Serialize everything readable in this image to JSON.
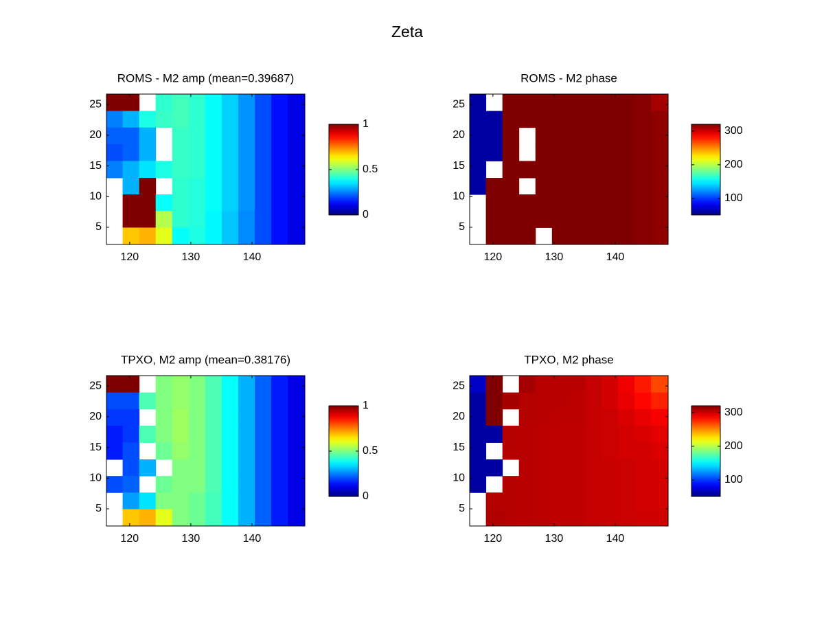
{
  "title": "Zeta",
  "chart_data": [
    {
      "type": "heatmap",
      "title": "ROMS - M2 amp (mean=0.39687)",
      "colormap": "jet",
      "x": [
        117.5,
        120.2,
        122.9,
        125.6,
        128.3,
        131,
        133.7,
        136.4,
        139.1,
        141.8,
        144.5,
        147.2
      ],
      "y": [
        25.3,
        22.6,
        19.9,
        17.2,
        14.4,
        11.7,
        9.0,
        6.3,
        3.6
      ],
      "z": [
        [
          1,
          1,
          null,
          0.42,
          0.44,
          0.42,
          0.38,
          0.33,
          0.27,
          0.2,
          0.14,
          0.1
        ],
        [
          0.25,
          0.3,
          0.4,
          0.43,
          0.44,
          0.42,
          0.38,
          0.33,
          0.27,
          0.2,
          0.14,
          0.1
        ],
        [
          0.22,
          0.22,
          0.3,
          null,
          0.43,
          0.42,
          0.38,
          0.33,
          0.27,
          0.2,
          0.14,
          0.1
        ],
        [
          0.2,
          0.22,
          0.3,
          null,
          0.43,
          0.42,
          0.38,
          0.33,
          0.27,
          0.2,
          0.14,
          0.1
        ],
        [
          0.25,
          0.3,
          0.35,
          0.4,
          0.43,
          0.42,
          0.38,
          0.33,
          0.27,
          0.2,
          0.14,
          0.1
        ],
        [
          null,
          0.3,
          1,
          null,
          0.42,
          0.41,
          0.38,
          0.33,
          0.27,
          0.2,
          0.14,
          0.1
        ],
        [
          null,
          1,
          1,
          0.38,
          0.42,
          0.41,
          0.38,
          0.33,
          0.27,
          0.2,
          0.14,
          0.1
        ],
        [
          null,
          1,
          1,
          0.55,
          0.42,
          0.41,
          0.37,
          0.32,
          0.26,
          0.2,
          0.14,
          0.1
        ],
        [
          null,
          0.68,
          0.7,
          0.6,
          0.38,
          0.4,
          0.37,
          0.32,
          0.26,
          0.2,
          0.14,
          0.1
        ]
      ],
      "xlim": [
        116.2,
        148.65
      ],
      "ylim": [
        2.2,
        26.7
      ],
      "xticks": [
        120,
        130,
        140
      ],
      "yticks": [
        5,
        10,
        15,
        20,
        25
      ],
      "clim": [
        0,
        1
      ],
      "cticks": [
        0,
        0.5,
        1
      ]
    },
    {
      "type": "heatmap",
      "title": "ROMS - M2 phase",
      "colormap": "jet",
      "x": [
        117.5,
        120.2,
        122.9,
        125.6,
        128.3,
        131,
        133.7,
        136.4,
        139.1,
        141.8,
        144.5,
        147.2
      ],
      "y": [
        25.3,
        22.6,
        19.9,
        17.2,
        14.4,
        11.7,
        9.0,
        6.3,
        3.6
      ],
      "z": [
        [
          60,
          null,
          325,
          322,
          322,
          322,
          322,
          322,
          322,
          320,
          318,
          310
        ],
        [
          60,
          60,
          325,
          322,
          322,
          322,
          322,
          322,
          322,
          320,
          318,
          316
        ],
        [
          60,
          60,
          325,
          null,
          322,
          322,
          322,
          322,
          322,
          320,
          318,
          316
        ],
        [
          60,
          60,
          325,
          null,
          322,
          322,
          322,
          322,
          322,
          320,
          318,
          316
        ],
        [
          60,
          null,
          325,
          322,
          322,
          322,
          322,
          322,
          322,
          320,
          318,
          316
        ],
        [
          60,
          325,
          325,
          null,
          322,
          322,
          322,
          322,
          322,
          320,
          318,
          316
        ],
        [
          null,
          325,
          325,
          322,
          322,
          322,
          322,
          322,
          322,
          320,
          318,
          316
        ],
        [
          null,
          325,
          325,
          322,
          322,
          322,
          322,
          322,
          322,
          320,
          318,
          316
        ],
        [
          null,
          325,
          325,
          322,
          null,
          322,
          322,
          322,
          322,
          320,
          318,
          316
        ]
      ],
      "xlim": [
        116.2,
        148.65
      ],
      "ylim": [
        2.2,
        26.7
      ],
      "xticks": [
        120,
        130,
        140
      ],
      "yticks": [
        5,
        10,
        15,
        20,
        25
      ],
      "clim": [
        51,
        320
      ],
      "cticks": [
        100,
        200,
        300
      ]
    },
    {
      "type": "heatmap",
      "title": "TPXO, M2 amp (mean=0.38176)",
      "colormap": "jet",
      "x": [
        117.5,
        120.2,
        122.9,
        125.6,
        128.3,
        131,
        133.7,
        136.4,
        139.1,
        141.8,
        144.5,
        147.2
      ],
      "y": [
        25.3,
        22.6,
        19.9,
        17.2,
        14.4,
        11.7,
        9.0,
        6.3,
        3.6
      ],
      "z": [
        [
          1,
          1,
          null,
          0.5,
          0.52,
          0.5,
          0.45,
          0.38,
          0.3,
          0.22,
          0.15,
          0.1
        ],
        [
          0.2,
          0.2,
          0.45,
          0.5,
          0.52,
          0.5,
          0.45,
          0.38,
          0.3,
          0.22,
          0.15,
          0.1
        ],
        [
          0.18,
          0.18,
          null,
          0.5,
          0.53,
          0.5,
          0.45,
          0.38,
          0.3,
          0.22,
          0.15,
          0.1
        ],
        [
          0.15,
          0.18,
          0.45,
          0.5,
          0.53,
          0.5,
          0.45,
          0.38,
          0.3,
          0.22,
          0.15,
          0.1
        ],
        [
          0.15,
          0.2,
          null,
          0.48,
          0.52,
          0.5,
          0.45,
          0.38,
          0.3,
          0.22,
          0.15,
          0.1
        ],
        [
          null,
          0.2,
          0.3,
          null,
          0.5,
          0.5,
          0.45,
          0.38,
          0.3,
          0.22,
          0.15,
          0.1
        ],
        [
          0.2,
          0.22,
          null,
          0.48,
          0.5,
          0.5,
          0.45,
          0.38,
          0.3,
          0.22,
          0.15,
          0.1
        ],
        [
          null,
          0.28,
          0.35,
          0.5,
          0.5,
          0.48,
          0.44,
          0.38,
          0.3,
          0.22,
          0.15,
          0.1
        ],
        [
          null,
          0.68,
          0.7,
          0.6,
          0.5,
          0.48,
          0.44,
          0.38,
          0.3,
          0.22,
          0.15,
          0.1
        ]
      ],
      "xlim": [
        116.2,
        148.65
      ],
      "ylim": [
        2.2,
        26.7
      ],
      "xticks": [
        120,
        130,
        140
      ],
      "yticks": [
        5,
        10,
        15,
        20,
        25
      ],
      "clim": [
        0,
        1
      ],
      "cticks": [
        0,
        0.5,
        1
      ]
    },
    {
      "type": "heatmap",
      "title": "TPXO, M2 phase",
      "colormap": "jet",
      "x": [
        117.5,
        120.2,
        122.9,
        125.6,
        128.3,
        131,
        133.7,
        136.4,
        139.1,
        141.8,
        144.5,
        147.2
      ],
      "y": [
        25.3,
        22.6,
        19.9,
        17.2,
        14.4,
        11.7,
        9.0,
        6.3,
        3.6
      ],
      "z": [
        [
          70,
          330,
          null,
          310,
          305,
          305,
          305,
          302,
          298,
          290,
          280,
          268
        ],
        [
          60,
          330,
          310,
          306,
          305,
          305,
          304,
          302,
          298,
          292,
          285,
          278
        ],
        [
          60,
          320,
          null,
          306,
          305,
          304,
          304,
          302,
          300,
          296,
          292,
          288
        ],
        [
          60,
          60,
          306,
          305,
          304,
          303,
          303,
          302,
          300,
          298,
          296,
          294
        ],
        [
          60,
          null,
          306,
          305,
          304,
          303,
          303,
          302,
          300,
          298,
          298,
          296
        ],
        [
          60,
          60,
          null,
          305,
          304,
          303,
          303,
          302,
          301,
          300,
          298,
          298
        ],
        [
          60,
          null,
          306,
          305,
          304,
          303,
          303,
          302,
          301,
          300,
          298,
          298
        ],
        [
          null,
          306,
          306,
          305,
          304,
          303,
          303,
          302,
          301,
          300,
          298,
          298
        ],
        [
          null,
          307,
          306,
          305,
          304,
          303,
          303,
          302,
          301,
          300,
          299,
          299
        ]
      ],
      "xlim": [
        116.2,
        148.65
      ],
      "ylim": [
        2.2,
        26.7
      ],
      "xticks": [
        120,
        130,
        140
      ],
      "yticks": [
        5,
        10,
        15,
        20,
        25
      ],
      "clim": [
        51,
        320
      ],
      "cticks": [
        100,
        200,
        300
      ]
    }
  ]
}
